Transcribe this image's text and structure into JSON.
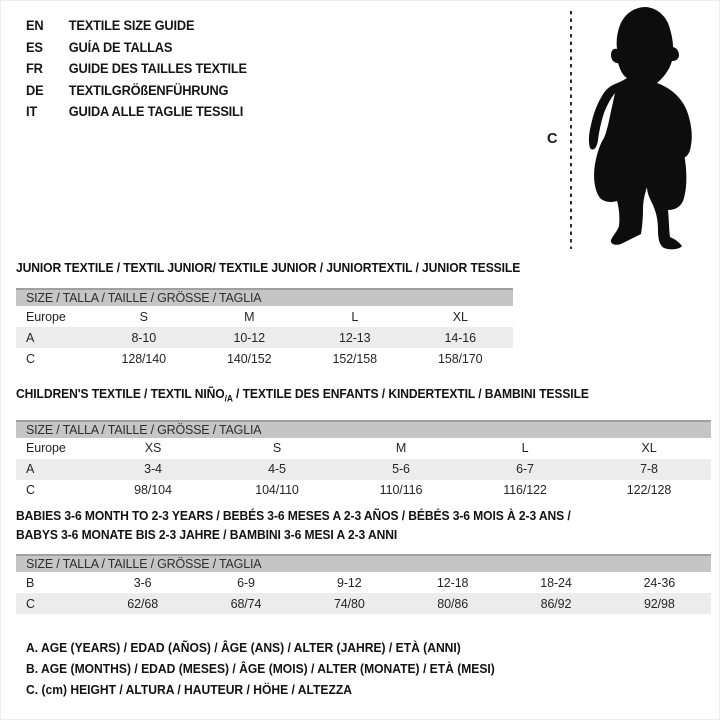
{
  "languages": [
    {
      "code": "EN",
      "label": "TEXTILE SIZE GUIDE"
    },
    {
      "code": "ES",
      "label": "GUÍA DE TALLAS"
    },
    {
      "code": "FR",
      "label": "GUIDE DES TAILLES TEXTILE"
    },
    {
      "code": "DE",
      "label": "TEXTILGRÖßENFÜHRUNG"
    },
    {
      "code": "IT",
      "label": "GUIDA ALLE TAGLIE TESSILI"
    }
  ],
  "figure": {
    "label": "C",
    "icon": "toddler-silhouette"
  },
  "tables": [
    {
      "id": "junior",
      "title_lines": [
        [
          {
            "text": "JUNIOR TEXTILE / TEXTIL JUNIOR/ TEXTILE JUNIOR / JUNIORTEXTIL / JUNIOR TESSILE"
          }
        ]
      ],
      "header": "SIZE / TALLA / TAILLE / GRÖSSE / TAGLIA",
      "rows": [
        {
          "label": "Europe",
          "values": [
            "S",
            "M",
            "L",
            "XL"
          ],
          "shaded": false
        },
        {
          "label": "A",
          "values": [
            "8-10",
            "10-12",
            "12-13",
            "14-16"
          ],
          "shaded": true
        },
        {
          "label": "C",
          "values": [
            "128/140",
            "140/152",
            "152/158",
            "158/170"
          ],
          "shaded": false
        }
      ]
    },
    {
      "id": "children",
      "title_lines": [
        [
          {
            "text": "CHILDREN'S TEXTILE / TEXTIL NIÑO"
          },
          {
            "text": "/A",
            "sub": true
          },
          {
            "text": " / TEXTILE DES ENFANTS / KINDERTEXTIL / BAMBINI TESSILE"
          }
        ]
      ],
      "header": "SIZE / TALLA / TAILLE / GRÖSSE / TAGLIA",
      "rows": [
        {
          "label": "Europe",
          "values": [
            "XS",
            "S",
            "M",
            "L",
            "XL"
          ],
          "shaded": false
        },
        {
          "label": "A",
          "values": [
            "3-4",
            "4-5",
            "5-6",
            "6-7",
            "7-8"
          ],
          "shaded": true
        },
        {
          "label": "C",
          "values": [
            "98/104",
            "104/110",
            "110/116",
            "116/122",
            "122/128"
          ],
          "shaded": false
        }
      ]
    },
    {
      "id": "babies",
      "title_lines": [
        [
          {
            "text": "BABIES 3-6 MONTH TO 2-3 YEARS / BEBÉS 3-6 MESES A 2-3 AÑOS / BÉBÉS 3-6 MOIS À 2-3 ANS /"
          }
        ],
        [
          {
            "text": "BABYS 3-6 MONATE BIS 2-3 JAHRE / BAMBINI 3-6 MESI A 2-3 ANNI"
          }
        ]
      ],
      "header": "SIZE / TALLA / TAILLE / GRÖSSE / TAGLIA",
      "rows": [
        {
          "label": "B",
          "values": [
            "3-6",
            "6-9",
            "9-12",
            "12-18",
            "18-24",
            "24-36"
          ],
          "shaded": false
        },
        {
          "label": "C",
          "values": [
            "62/68",
            "68/74",
            "74/80",
            "80/86",
            "86/92",
            "92/98"
          ],
          "shaded": true
        }
      ]
    }
  ],
  "footnotes": [
    "A. AGE (YEARS) / EDAD (AÑOS) / ÂGE (ANS) / ALTER (JAHRE) / ETÀ (ANNI)",
    "B. AGE (MONTHS) / EDAD (MESES) / ÂGE (MOIS) / ALTER (MONATE) / ETÀ (MESI)",
    "C. (cm) HEIGHT / ALTURA / HAUTEUR / HÖHE / ALTEZZA"
  ],
  "colors": {
    "header_bar": "#c5c5c5",
    "header_bar_top_line": "#a0a0a0",
    "shaded_row": "#ececec",
    "text": "#1c1c1c",
    "silhouette": "#0d0d0d"
  }
}
